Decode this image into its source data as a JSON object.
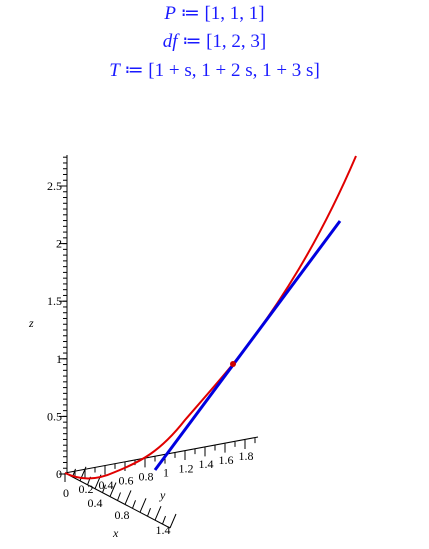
{
  "worksheet": {
    "lines": [
      {
        "lhs": "P",
        "op": "≔",
        "rhs": "[1, 1, 1]"
      },
      {
        "lhs": "df",
        "op": "≔",
        "rhs": "[1, 2, 3]"
      },
      {
        "lhs": "T",
        "op": "≔",
        "rhs": "[1 + s, 1 + 2 s, 1 + 3 s]"
      }
    ],
    "plot": {
      "x_label": "x",
      "y_label": "y",
      "z_label": "z",
      "z_ticks": [
        "0",
        "0.5",
        "1",
        "1.5",
        "2",
        "2.5"
      ],
      "y_ticks": [
        "0",
        "0.2",
        "0.4",
        "0.6",
        "0.8",
        "1",
        "1.2",
        "1.4",
        "1.6",
        "1.8"
      ],
      "x_ticks": [
        "0.4",
        "0.8",
        "1.4"
      ]
    }
  }
}
